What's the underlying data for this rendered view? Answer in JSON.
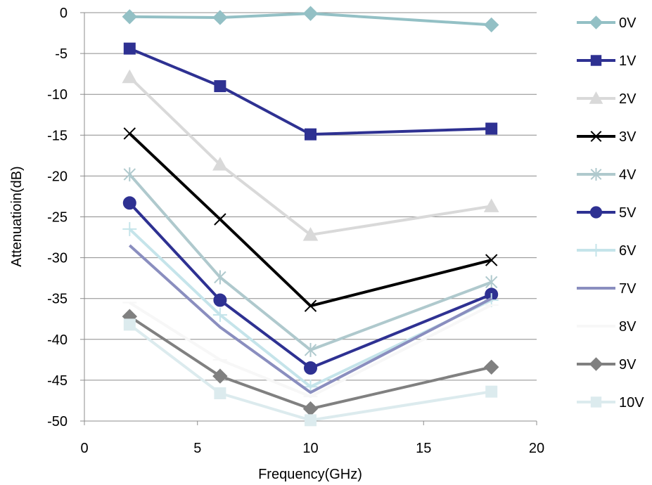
{
  "chart_data": {
    "type": "line",
    "xlabel": "Frequency(GHz)",
    "ylabel": "Attenuatioin(dB)",
    "xlim": [
      0,
      20
    ],
    "ylim": [
      -50,
      0
    ],
    "xticks": [
      0,
      5,
      10,
      15,
      20
    ],
    "yticks": [
      0,
      -5,
      -10,
      -15,
      -20,
      -25,
      -30,
      -35,
      -40,
      -45,
      -50
    ],
    "grid": "horizontal",
    "legend_position": "right",
    "x": [
      2,
      6,
      10,
      18
    ],
    "series": [
      {
        "name": "0V",
        "values": [
          -0.5,
          -0.6,
          -0.1,
          -1.5
        ],
        "color": "#93c0c5",
        "marker": "diamond"
      },
      {
        "name": "1V",
        "values": [
          -4.4,
          -9.0,
          -14.9,
          -14.2
        ],
        "color": "#2e3192",
        "marker": "square"
      },
      {
        "name": "2V",
        "values": [
          -7.9,
          -18.6,
          -27.2,
          -23.7
        ],
        "color": "#d9d9d9",
        "marker": "triangle"
      },
      {
        "name": "3V",
        "values": [
          -14.8,
          -25.3,
          -35.9,
          -30.3
        ],
        "color": "#000000",
        "marker": "x"
      },
      {
        "name": "4V",
        "values": [
          -19.8,
          -32.4,
          -41.3,
          -33.0
        ],
        "color": "#afc9cd",
        "marker": "star"
      },
      {
        "name": "5V",
        "values": [
          -23.3,
          -35.2,
          -43.5,
          -34.5
        ],
        "color": "#2e3192",
        "marker": "circle"
      },
      {
        "name": "6V",
        "values": [
          -26.5,
          -37.0,
          -45.8,
          -35.2
        ],
        "color": "#c5e4ea",
        "marker": "plus"
      },
      {
        "name": "7V",
        "values": [
          -28.5,
          -38.5,
          -46.5,
          -35.0
        ],
        "color": "#8a8ebf",
        "marker": "none"
      },
      {
        "name": "8V",
        "values": [
          -35.5,
          -42.5,
          -47.0,
          -35.8
        ],
        "color": "#f7f7f7",
        "marker": "dash"
      },
      {
        "name": "9V",
        "values": [
          -37.2,
          -44.5,
          -48.5,
          -43.4
        ],
        "color": "#808080",
        "marker": "diamond"
      },
      {
        "name": "10V",
        "values": [
          -38.2,
          -46.6,
          -49.9,
          -46.4
        ],
        "color": "#dcebee",
        "marker": "square"
      }
    ]
  }
}
